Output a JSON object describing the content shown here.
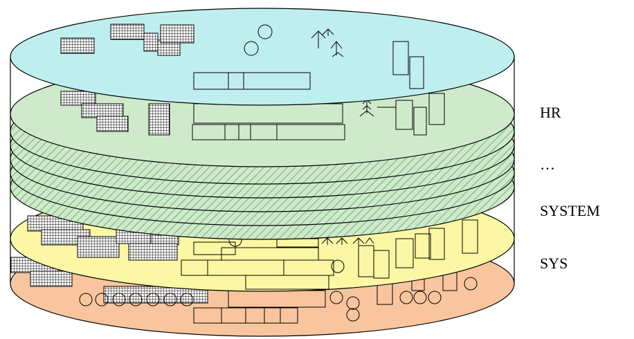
{
  "labels": {
    "hr": "HR",
    "ellipsis": "…",
    "system": "SYSTEM",
    "sys": "SYS"
  },
  "colors": {
    "top_layer": "#bfeeef",
    "schema_layer": "#cfeacb",
    "hatch": "#8fc090",
    "system_layer": "#fbf7a4",
    "sys_layer": "#f8c59e",
    "outline": "#000000"
  },
  "icons": [
    "grid-block-icon",
    "circle-icon",
    "tree-icon",
    "rectangle-icon"
  ]
}
